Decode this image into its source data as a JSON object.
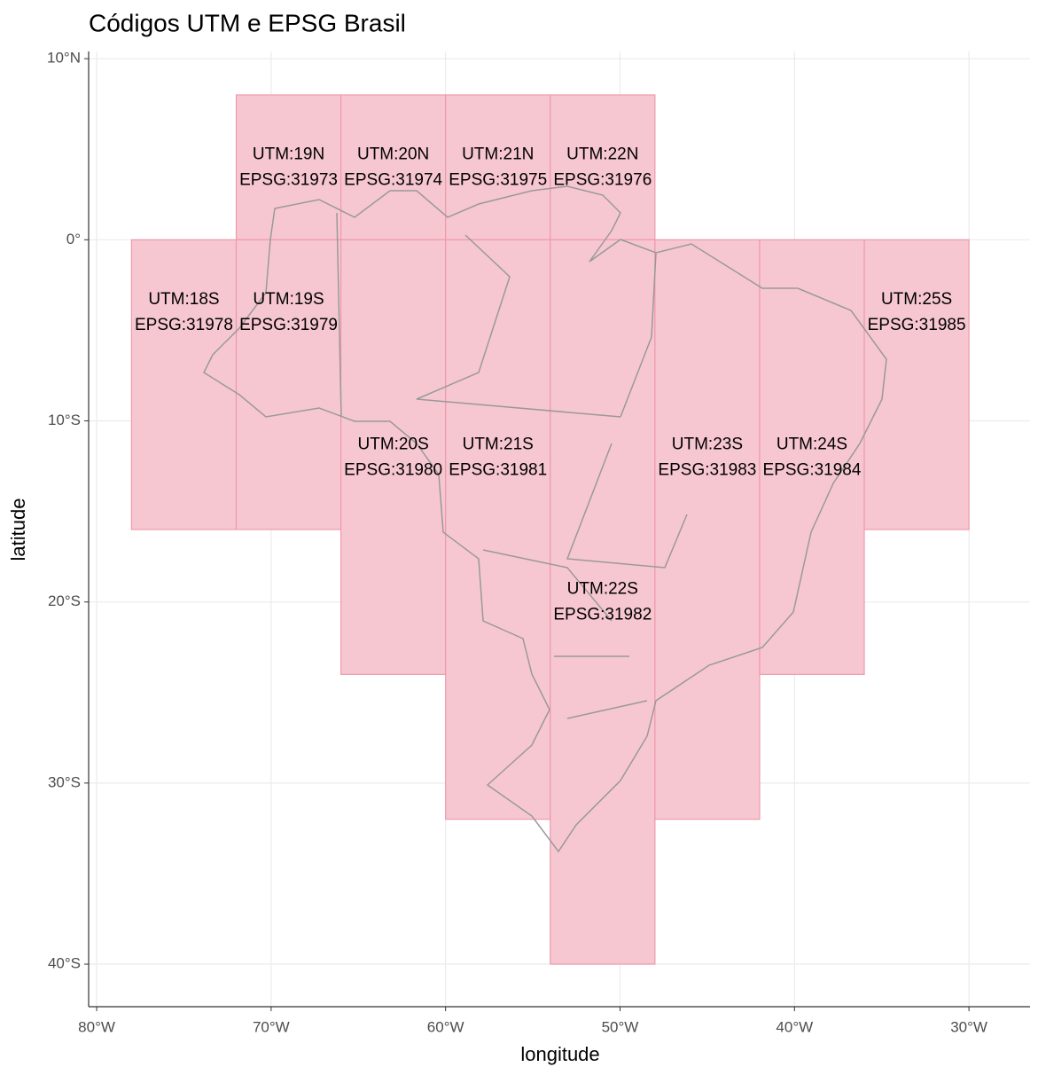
{
  "chart_data": {
    "type": "map",
    "title": "Códigos UTM e EPSG Brasil",
    "x_label": "longitude",
    "y_label": "latitude",
    "xlim": [
      -80.46,
      -26.5
    ],
    "ylim": [
      -42.35,
      10.4
    ],
    "xticks": [
      {
        "value": -80,
        "label": "80°W"
      },
      {
        "value": -70,
        "label": "70°W"
      },
      {
        "value": -60,
        "label": "60°W"
      },
      {
        "value": -50,
        "label": "50°W"
      },
      {
        "value": -40,
        "label": "40°W"
      },
      {
        "value": -30,
        "label": "30°W"
      }
    ],
    "yticks": [
      {
        "value": 10,
        "label": "10°N"
      },
      {
        "value": 0,
        "label": "0°"
      },
      {
        "value": -10,
        "label": "10°S"
      },
      {
        "value": -20,
        "label": "20°S"
      },
      {
        "value": -30,
        "label": "30°S"
      },
      {
        "value": -40,
        "label": "40°S"
      }
    ],
    "grid": true,
    "color": "#f7c7d1",
    "stroke": "#ee9aab",
    "zones": [
      {
        "name": "UTM:19N",
        "epsg": "EPSG:31973",
        "lon": [
          -72,
          -66
        ],
        "lat": [
          0,
          8
        ],
        "label_lon": -69,
        "label_lat": 4
      },
      {
        "name": "UTM:20N",
        "epsg": "EPSG:31974",
        "lon": [
          -66,
          -60
        ],
        "lat": [
          0,
          8
        ],
        "label_lon": -63,
        "label_lat": 4
      },
      {
        "name": "UTM:21N",
        "epsg": "EPSG:31975",
        "lon": [
          -60,
          -54
        ],
        "lat": [
          0,
          8
        ],
        "label_lon": -57,
        "label_lat": 4
      },
      {
        "name": "UTM:22N",
        "epsg": "EPSG:31976",
        "lon": [
          -54,
          -48
        ],
        "lat": [
          0,
          8
        ],
        "label_lon": -51,
        "label_lat": 4
      },
      {
        "name": "UTM:18S",
        "epsg": "EPSG:31978",
        "lon": [
          -78,
          -72
        ],
        "lat": [
          -16,
          0
        ],
        "label_lon": -75,
        "label_lat": -4
      },
      {
        "name": "UTM:19S",
        "epsg": "EPSG:31979",
        "lon": [
          -72,
          -66
        ],
        "lat": [
          -16,
          0
        ],
        "label_lon": -69,
        "label_lat": -4
      },
      {
        "name": "UTM:20S",
        "epsg": "EPSG:31980",
        "lon": [
          -66,
          -60
        ],
        "lat": [
          -24,
          0
        ],
        "label_lon": -63,
        "label_lat": -12
      },
      {
        "name": "UTM:21S",
        "epsg": "EPSG:31981",
        "lon": [
          -60,
          -54
        ],
        "lat": [
          -32,
          0
        ],
        "label_lon": -57,
        "label_lat": -12
      },
      {
        "name": "UTM:22S",
        "epsg": "EPSG:31982",
        "lon": [
          -54,
          -48
        ],
        "lat": [
          -40,
          0
        ],
        "label_lon": -51,
        "label_lat": -20
      },
      {
        "name": "UTM:23S",
        "epsg": "EPSG:31983",
        "lon": [
          -48,
          -42
        ],
        "lat": [
          -32,
          0
        ],
        "label_lon": -45,
        "label_lat": -12
      },
      {
        "name": "UTM:24S",
        "epsg": "EPSG:31984",
        "lon": [
          -42,
          -36
        ],
        "lat": [
          -24,
          0
        ],
        "label_lon": -39,
        "label_lat": -12
      },
      {
        "name": "UTM:25S",
        "epsg": "EPSG:31985",
        "lon": [
          -36,
          -30
        ],
        "lat": [
          -16,
          0
        ],
        "label_lon": -33,
        "label_lat": -4
      }
    ]
  }
}
